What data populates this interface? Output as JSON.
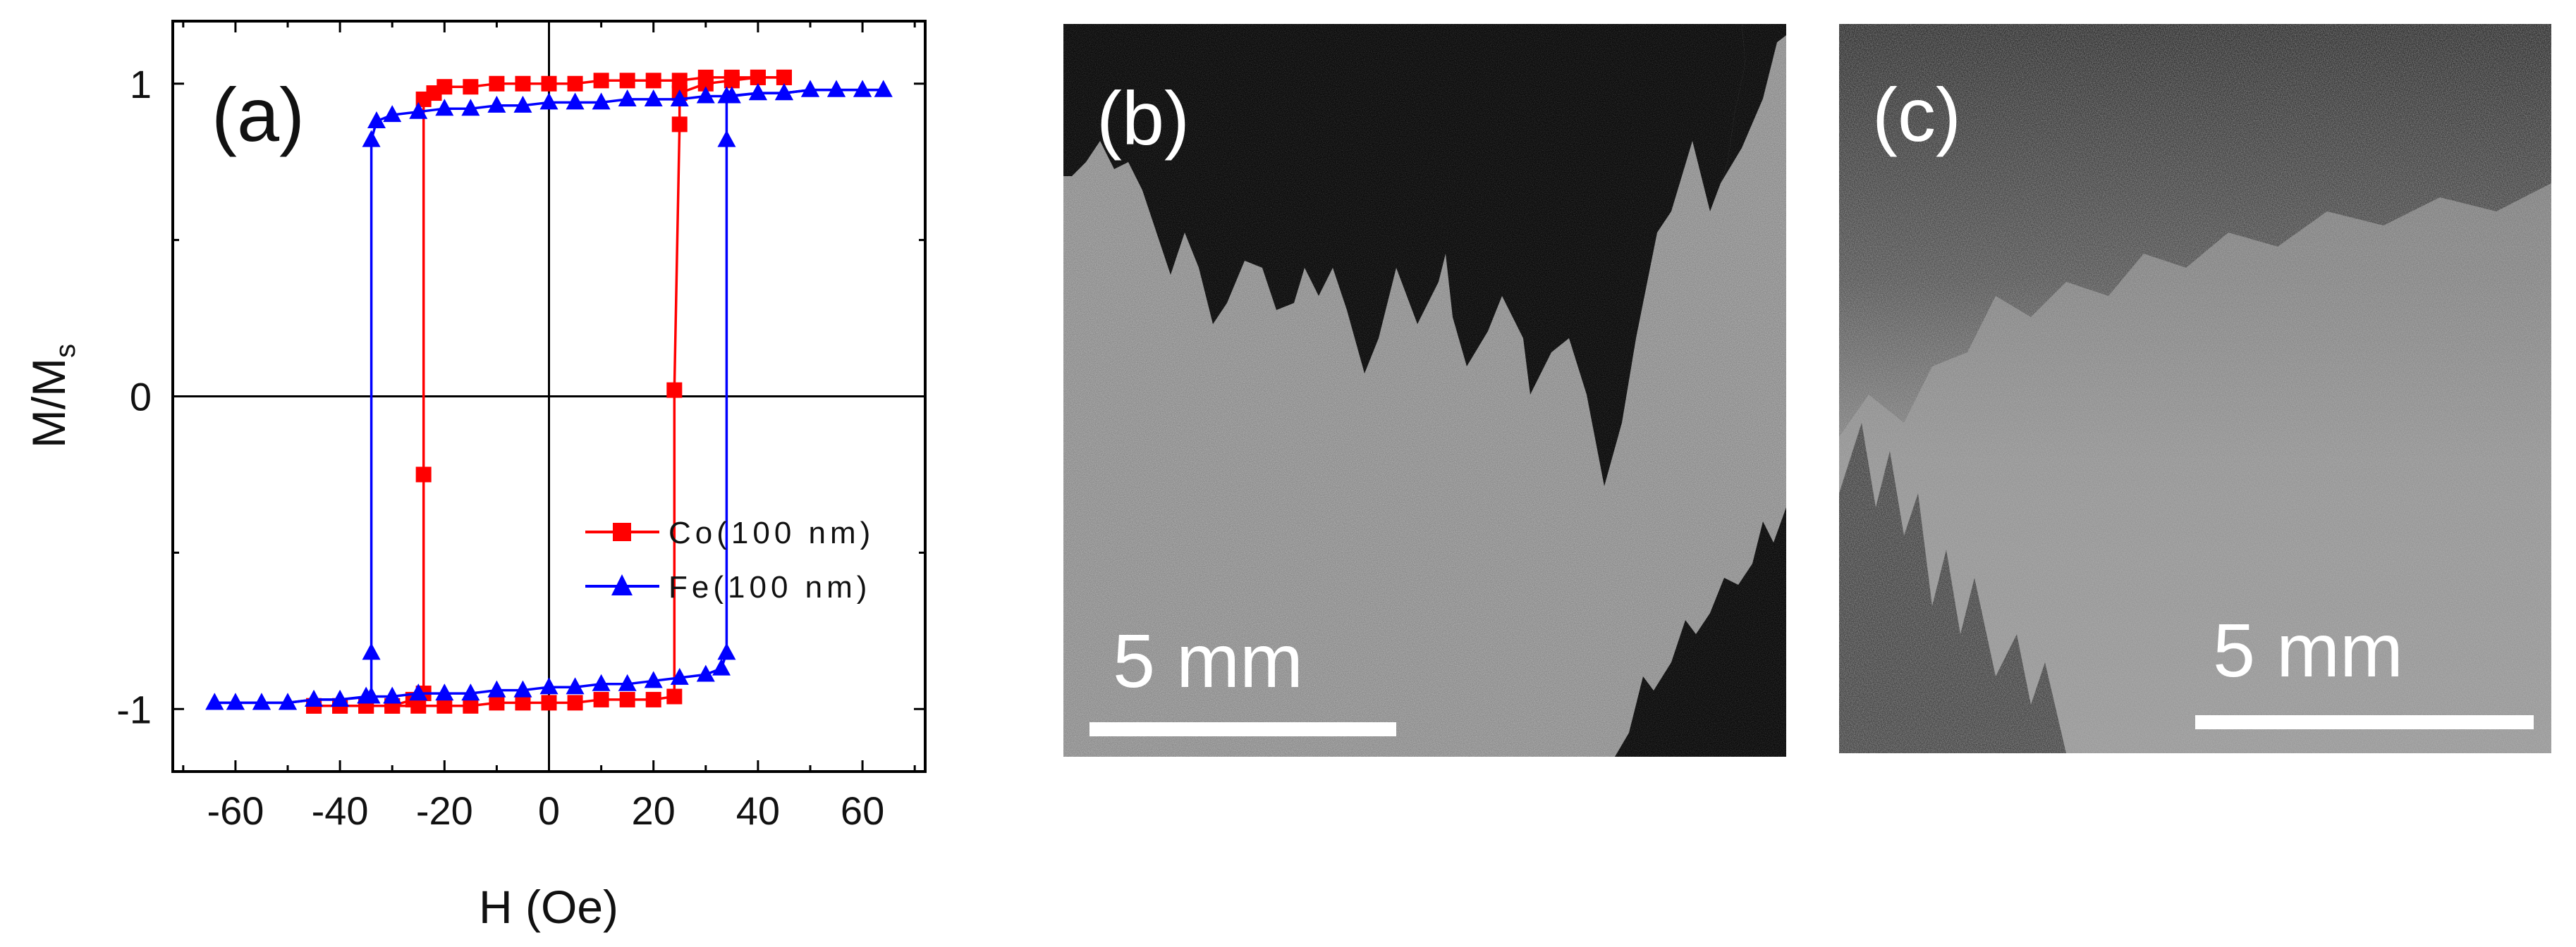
{
  "chart_data": {
    "type": "line",
    "panel_label": "(a)",
    "xlabel": "H (Oe)",
    "ylabel": "M/M",
    "ylabel_sub": "s",
    "xlim": [
      -72,
      72
    ],
    "ylim": [
      -1.2,
      1.2
    ],
    "xticks": [
      -60,
      -40,
      -20,
      0,
      20,
      40,
      60
    ],
    "yticks": [
      -1,
      0,
      1
    ],
    "grid": false,
    "legend_position": "center-right",
    "series": [
      {
        "name": "Co(100 nm)",
        "color": "#ff0000",
        "marker": "square",
        "descending": [
          [
            45,
            1.02
          ],
          [
            40,
            1.02
          ],
          [
            35,
            1.02
          ],
          [
            30,
            1.02
          ],
          [
            25,
            1.01
          ],
          [
            20,
            1.01
          ],
          [
            15,
            1.01
          ],
          [
            10,
            1.01
          ],
          [
            5,
            1.0
          ],
          [
            0,
            1.0
          ],
          [
            -5,
            1.0
          ],
          [
            -10,
            1.0
          ],
          [
            -15,
            0.99
          ],
          [
            -20,
            0.99
          ],
          [
            -22,
            0.97
          ],
          [
            -24,
            0.95
          ],
          [
            -24,
            -0.25
          ],
          [
            -24,
            -0.95
          ],
          [
            -26,
            -0.97
          ],
          [
            -30,
            -0.99
          ],
          [
            -35,
            -0.99
          ],
          [
            -40,
            -0.99
          ],
          [
            -45,
            -0.99
          ]
        ],
        "ascending": [
          [
            -45,
            -0.99
          ],
          [
            -40,
            -0.99
          ],
          [
            -35,
            -0.99
          ],
          [
            -30,
            -0.99
          ],
          [
            -25,
            -0.99
          ],
          [
            -20,
            -0.99
          ],
          [
            -15,
            -0.99
          ],
          [
            -10,
            -0.98
          ],
          [
            -5,
            -0.98
          ],
          [
            0,
            -0.98
          ],
          [
            5,
            -0.98
          ],
          [
            10,
            -0.97
          ],
          [
            15,
            -0.97
          ],
          [
            20,
            -0.97
          ],
          [
            24,
            -0.96
          ],
          [
            24,
            0.02
          ],
          [
            25,
            0.87
          ],
          [
            25,
            0.97
          ],
          [
            30,
            1.0
          ],
          [
            35,
            1.01
          ],
          [
            40,
            1.02
          ],
          [
            45,
            1.02
          ]
        ]
      },
      {
        "name": "Fe(100 nm)",
        "color": "#0000ff",
        "marker": "triangle",
        "descending": [
          [
            64,
            0.98
          ],
          [
            60,
            0.98
          ],
          [
            55,
            0.98
          ],
          [
            50,
            0.98
          ],
          [
            45,
            0.97
          ],
          [
            40,
            0.97
          ],
          [
            35,
            0.96
          ],
          [
            30,
            0.96
          ],
          [
            25,
            0.95
          ],
          [
            20,
            0.95
          ],
          [
            15,
            0.95
          ],
          [
            10,
            0.94
          ],
          [
            5,
            0.94
          ],
          [
            0,
            0.94
          ],
          [
            -5,
            0.93
          ],
          [
            -10,
            0.93
          ],
          [
            -15,
            0.92
          ],
          [
            -20,
            0.92
          ],
          [
            -25,
            0.91
          ],
          [
            -30,
            0.9
          ],
          [
            -33,
            0.88
          ],
          [
            -34,
            0.82
          ],
          [
            -34,
            -0.82
          ],
          [
            -34,
            -0.96
          ],
          [
            -40,
            -0.97
          ],
          [
            -45,
            -0.97
          ],
          [
            -50,
            -0.98
          ],
          [
            -55,
            -0.98
          ],
          [
            -60,
            -0.98
          ],
          [
            -64,
            -0.98
          ]
        ],
        "ascending": [
          [
            -64,
            -0.98
          ],
          [
            -60,
            -0.98
          ],
          [
            -55,
            -0.98
          ],
          [
            -50,
            -0.98
          ],
          [
            -45,
            -0.97
          ],
          [
            -40,
            -0.97
          ],
          [
            -35,
            -0.96
          ],
          [
            -30,
            -0.96
          ],
          [
            -25,
            -0.95
          ],
          [
            -20,
            -0.95
          ],
          [
            -15,
            -0.95
          ],
          [
            -10,
            -0.94
          ],
          [
            -5,
            -0.94
          ],
          [
            0,
            -0.93
          ],
          [
            5,
            -0.93
          ],
          [
            10,
            -0.92
          ],
          [
            15,
            -0.92
          ],
          [
            20,
            -0.91
          ],
          [
            25,
            -0.9
          ],
          [
            30,
            -0.89
          ],
          [
            33,
            -0.87
          ],
          [
            34,
            -0.82
          ],
          [
            34,
            0.82
          ],
          [
            34,
            0.96
          ],
          [
            40,
            0.97
          ],
          [
            45,
            0.97
          ],
          [
            50,
            0.98
          ],
          [
            55,
            0.98
          ],
          [
            60,
            0.98
          ],
          [
            64,
            0.98
          ]
        ]
      }
    ]
  },
  "images": [
    {
      "panel_label": "(b)",
      "scale_bar": "5 mm"
    },
    {
      "panel_label": "(c)",
      "scale_bar": "5 mm"
    }
  ],
  "colors": {
    "axis": "#000000",
    "image_light": "#8c8c8c",
    "image_dark": "#0a0a0a"
  }
}
